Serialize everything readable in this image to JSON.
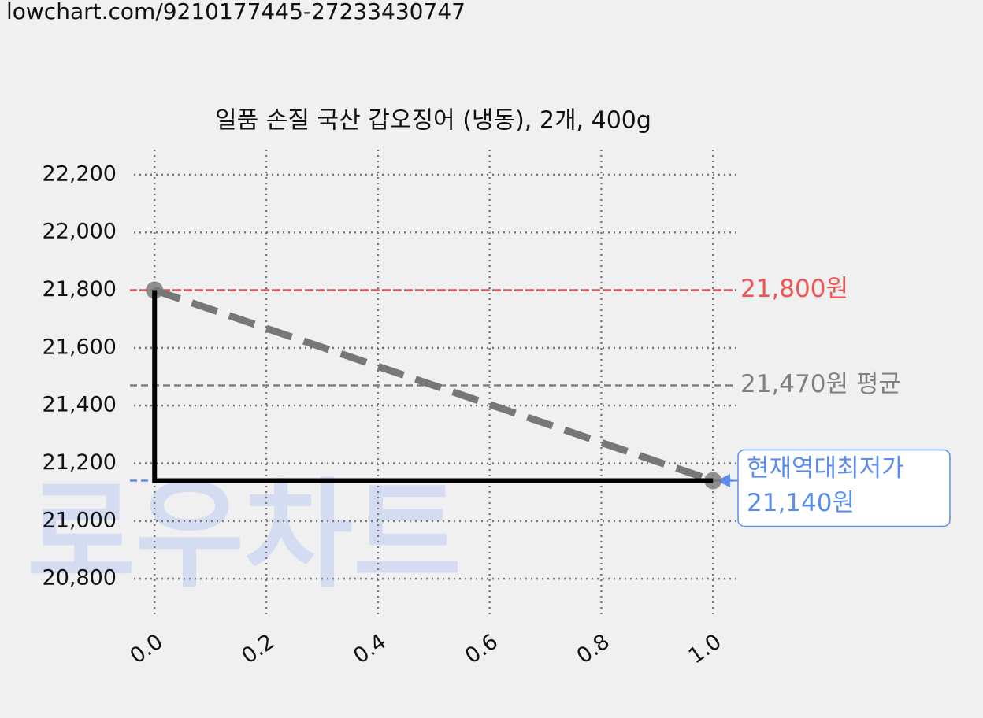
{
  "header": "lowchart.com/9210177445-27233430747",
  "chart_data": {
    "type": "line",
    "title": "일품 손질 국산 갑오징어 (냉동), 2개, 400g",
    "watermark": "로우차트",
    "xlim": [
      -0.037,
      1.042
    ],
    "ylim": [
      20664,
      22287
    ],
    "xticks": [
      {
        "value": 0,
        "label": "0.0"
      },
      0.2,
      0.4,
      0.6,
      0.8,
      {
        "value": 1,
        "label": "1.0"
      }
    ],
    "yticks": [
      {
        "value": 20800,
        "label": "20,800"
      },
      {
        "value": 21000,
        "label": "21,000"
      },
      {
        "value": 21200,
        "label": "21,200"
      },
      {
        "value": 21400,
        "label": "21,400"
      },
      {
        "value": 21600,
        "label": "21,600"
      },
      {
        "value": 21800,
        "label": "21,800"
      },
      {
        "value": 22000,
        "label": "22,000"
      },
      {
        "value": 22200,
        "label": "22,200"
      }
    ],
    "grid": true,
    "series": [
      {
        "style": "dashed",
        "color": "#777777",
        "x": [
          0,
          1
        ],
        "values": [
          21800,
          21140
        ],
        "markers": true
      },
      {
        "style": "solid",
        "color": "#000000",
        "x": [
          0,
          0,
          1
        ],
        "values": [
          21800,
          21140,
          21140
        ],
        "markers": false
      }
    ],
    "hlines": [
      {
        "value": 21800,
        "label": "21,800원",
        "color": "#f05454"
      },
      {
        "value": 21470,
        "label": "21,470원 평균",
        "color": "#808080"
      },
      {
        "value": 21140,
        "label": [
          "현재역대최저가",
          "21,140원"
        ],
        "color": "#5b8def"
      }
    ]
  }
}
